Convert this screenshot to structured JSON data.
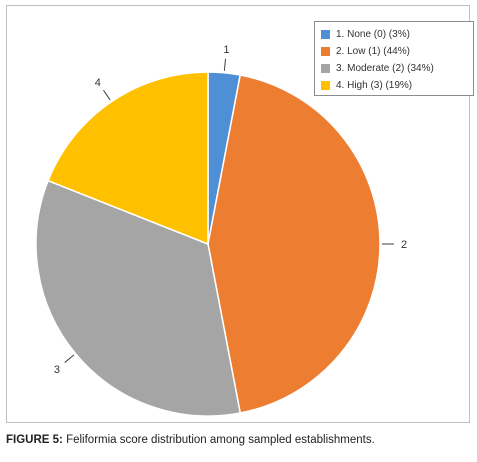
{
  "chart_data": {
    "type": "pie",
    "categories": [
      "1",
      "2",
      "3",
      "4"
    ],
    "values": [
      3,
      44,
      34,
      19
    ],
    "colors": [
      "#4F8FD5",
      "#ED7D31",
      "#A5A5A5",
      "#FFC000"
    ],
    "legend": {
      "placement": "top-right",
      "entries": [
        "1. None (0) (3%)",
        "2. Low (1) (44%)",
        "3. Moderate (2) (34%)",
        "4. High (3) (19%)"
      ]
    },
    "slice_labels": [
      "1",
      "2",
      "3",
      "4"
    ]
  },
  "caption": {
    "label": "FIGURE 5:",
    "text": " Feliformia score distribution among sampled establishments."
  }
}
